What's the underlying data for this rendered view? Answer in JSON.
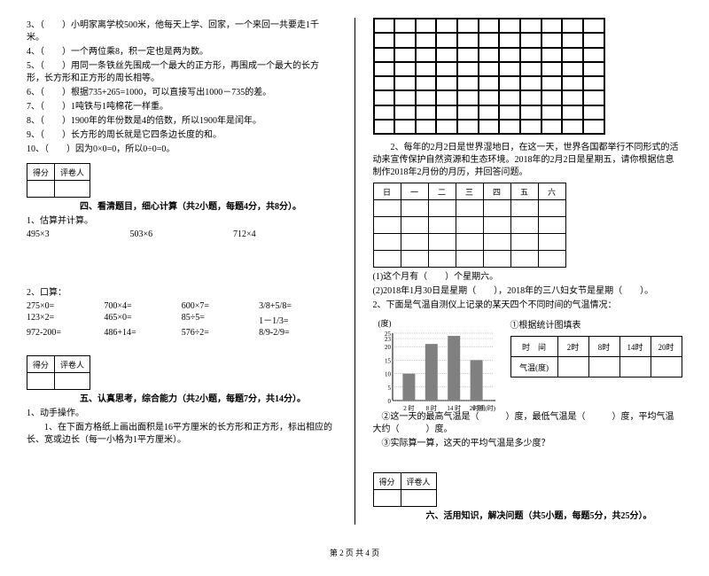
{
  "left": {
    "judgments": [
      "3、（　　）小明家离学校500米，他每天上学、回家，一个来回一共要走1千米。",
      "4、（　　）一个两位乘8，积一定也是两为数。",
      "5、（　　）用同一条铁丝先围成一个最大的正方形，再围成一个最大的长方形，长方形和正方形的周长相等。",
      "6、（　　）根据735+265=1000，可以直接写出1000－735的差。",
      "7、（　　）1吨铁与1吨棉花一样重。",
      "8、（　　）1900年的年份数是4的倍数，所以1900年是闰年。",
      "9、（　　）长方形的周长就是它四条边长度的和。",
      "10、（　　）因为0×0=0，所以0÷0=0。"
    ],
    "score_labels": {
      "a": "得分",
      "b": "评卷人"
    },
    "section4": "四、看清题目，细心计算（共2小题，每题4分，共8分）。",
    "q4_1": "1、估算并计算。",
    "est": [
      "495×3",
      "503×6",
      "712×4"
    ],
    "q4_2": "2、口算：",
    "oral": [
      [
        "275×0=",
        "700×4=",
        "600×7=",
        "3/8+5/8="
      ],
      [
        "123×2=",
        "465×0=",
        "85÷5=",
        "1－1/3="
      ],
      [
        "972-200=",
        "486+14=",
        "576÷2=",
        "8/9-2/9="
      ]
    ],
    "section5": "五、认真思考，综合能力（共2小题，每题7分，共14分）。",
    "q5_1": "1、动手操作。",
    "q5_1_desc": "　　1、在下面方格纸上画出面积是16平方厘米的长方形和正方形，标出相应的长、宽或边长（每一小格为1平方厘米）。"
  },
  "right": {
    "grid": {
      "rows": 8,
      "cols": 11
    },
    "q2_intro": "　　2、每年的2月2日是世界湿地日，在这一天，世界各国都举行不同形式的活动来宣传保护自然资源和生态环境。2018年的2月2日是星期五，请你根据信息制作2018年2月份的月历，并回答问题。",
    "cal_header": [
      "日",
      "一",
      "二",
      "三",
      "四",
      "五",
      "六"
    ],
    "cal_rows": 4,
    "q2_sub1": "(1)这个月有（　　）个星期六。",
    "q2_sub2": "(2)2018年1月30日是星期（　　），2018年的三八妇女节是星期（　　）。",
    "q3_intro": "2、下面是气温自测仪上记录的某天四个不同时间的气温情况：",
    "chart": {
      "ylabel": "(度)",
      "title": "①根据统计图填表",
      "yticks": [
        25,
        23,
        20,
        15,
        10,
        5,
        0
      ],
      "xticks": [
        "2 时",
        "8 时",
        "14 时",
        "20 时"
      ],
      "bars": [
        10,
        21,
        24,
        15
      ],
      "ymax": 25,
      "bar_color": "#808080",
      "axis_color": "#000000"
    },
    "fill_table": {
      "headers": [
        "时　间",
        "2时",
        "8时",
        "14时",
        "20时"
      ],
      "row2": "气温(度)"
    },
    "q3_sub2": "　②这一天的最高气温是（　　　）度，最低气温是（　　　）度，平均气温大约（　　　）度。",
    "q3_sub3": "　③实际算一算，这天的平均气温是多少度？",
    "score_labels": {
      "a": "得分",
      "b": "评卷人"
    },
    "section6": "六、活用知识，解决问题（共5小题，每题5分，共25分）。"
  },
  "footer": "第 2 页 共 4 页"
}
